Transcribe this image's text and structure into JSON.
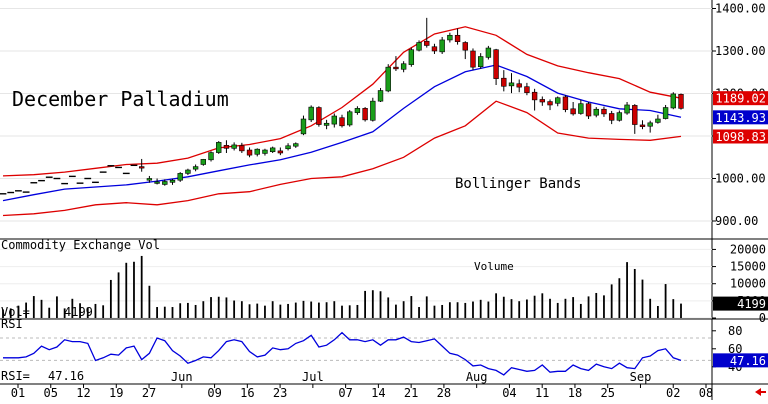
{
  "chart_data": {
    "type": "candlestick",
    "title": "December Palladium",
    "annotation": "Bollinger Bands",
    "colors": {
      "up": "#1a9e1a",
      "down": "#cc0000",
      "doji": "#000000",
      "upper_band": "#dd0000",
      "lower_band": "#dd0000",
      "mid_band": "#0000dd",
      "rsi_line": "#0000dd",
      "volume": "#000000",
      "tag_red": "#dd0000",
      "tag_blue": "#0000cc",
      "tag_black": "#000000"
    },
    "price_axis": {
      "range": [
        860,
        1420
      ],
      "ticks": [
        900,
        1000,
        1100,
        1200,
        1300,
        1400
      ],
      "tick_labels": [
        "900.00",
        "1000.00",
        "1100.00",
        "1200.00",
        "1300.00",
        "1400.00"
      ]
    },
    "price_tags": {
      "upper": "1189.02",
      "mid": "1143.93",
      "lower": "1098.83"
    },
    "candles": [
      [
        964,
        964,
        964,
        964
      ],
      [
        967,
        967,
        967,
        967
      ],
      [
        971,
        971,
        971,
        971
      ],
      [
        968,
        968,
        968,
        968
      ],
      [
        990,
        990,
        990,
        990
      ],
      [
        995,
        995,
        995,
        995
      ],
      [
        1003,
        1003,
        1003,
        1003
      ],
      [
        1000,
        1000,
        1000,
        1000
      ],
      [
        988,
        988,
        988,
        988
      ],
      [
        1005,
        1005,
        1005,
        1005
      ],
      [
        989,
        989,
        989,
        989
      ],
      [
        1000,
        1000,
        1000,
        1000
      ],
      [
        991,
        991,
        991,
        991
      ],
      [
        1015,
        1015,
        1015,
        1015
      ],
      [
        1030,
        1030,
        1030,
        1030
      ],
      [
        1026,
        1026,
        1026,
        1026
      ],
      [
        1012,
        1012,
        1012,
        1012
      ],
      [
        1031,
        1031,
        1031,
        1031
      ],
      [
        1028,
        1026,
        1046,
        1016
      ],
      [
        996,
        1000,
        1006,
        990
      ],
      [
        990,
        992,
        1000,
        986
      ],
      [
        986,
        993,
        998,
        983
      ],
      [
        991,
        996,
        999,
        985
      ],
      [
        996,
        1012,
        1015,
        992
      ],
      [
        1012,
        1020,
        1023,
        1008
      ],
      [
        1022,
        1028,
        1033,
        1017
      ],
      [
        1033,
        1045,
        1046,
        1030
      ],
      [
        1044,
        1061,
        1064,
        1040
      ],
      [
        1061,
        1085,
        1088,
        1058
      ],
      [
        1078,
        1071,
        1090,
        1060
      ],
      [
        1071,
        1079,
        1085,
        1066
      ],
      [
        1077,
        1065,
        1084,
        1060
      ],
      [
        1067,
        1055,
        1073,
        1050
      ],
      [
        1057,
        1069,
        1071,
        1052
      ],
      [
        1059,
        1067,
        1070,
        1054
      ],
      [
        1063,
        1072,
        1075,
        1060
      ],
      [
        1065,
        1060,
        1073,
        1055
      ],
      [
        1070,
        1077,
        1083,
        1066
      ],
      [
        1076,
        1082,
        1085,
        1072
      ],
      [
        1105,
        1140,
        1148,
        1102
      ],
      [
        1138,
        1168,
        1172,
        1133
      ],
      [
        1167,
        1127,
        1170,
        1122
      ],
      [
        1125,
        1130,
        1138,
        1116
      ],
      [
        1128,
        1147,
        1153,
        1120
      ],
      [
        1143,
        1124,
        1150,
        1120
      ],
      [
        1126,
        1157,
        1161,
        1122
      ],
      [
        1155,
        1165,
        1170,
        1150
      ],
      [
        1165,
        1138,
        1168,
        1134
      ],
      [
        1137,
        1182,
        1190,
        1134
      ],
      [
        1182,
        1207,
        1213,
        1180
      ],
      [
        1206,
        1262,
        1269,
        1203
      ],
      [
        1262,
        1258,
        1288,
        1253
      ],
      [
        1257,
        1270,
        1276,
        1250
      ],
      [
        1268,
        1303,
        1308,
        1263
      ],
      [
        1302,
        1320,
        1325,
        1299
      ],
      [
        1323,
        1313,
        1378,
        1308
      ],
      [
        1310,
        1300,
        1317,
        1293
      ],
      [
        1298,
        1326,
        1333,
        1293
      ],
      [
        1326,
        1337,
        1343,
        1320
      ],
      [
        1337,
        1322,
        1353,
        1315
      ],
      [
        1320,
        1302,
        1323,
        1281
      ],
      [
        1300,
        1262,
        1306,
        1255
      ],
      [
        1263,
        1287,
        1295,
        1258
      ],
      [
        1285,
        1307,
        1312,
        1280
      ],
      [
        1303,
        1235,
        1305,
        1220
      ],
      [
        1236,
        1217,
        1255,
        1205
      ],
      [
        1218,
        1225,
        1248,
        1201
      ],
      [
        1223,
        1215,
        1233,
        1203
      ],
      [
        1216,
        1202,
        1225,
        1196
      ],
      [
        1203,
        1185,
        1211,
        1160
      ],
      [
        1186,
        1180,
        1193,
        1171
      ],
      [
        1181,
        1173,
        1186,
        1161
      ],
      [
        1177,
        1190,
        1193,
        1170
      ],
      [
        1192,
        1162,
        1196,
        1156
      ],
      [
        1164,
        1152,
        1180,
        1148
      ],
      [
        1153,
        1176,
        1185,
        1150
      ],
      [
        1176,
        1147,
        1180,
        1140
      ],
      [
        1149,
        1163,
        1168,
        1144
      ],
      [
        1163,
        1152,
        1169,
        1145
      ],
      [
        1153,
        1137,
        1159,
        1128
      ],
      [
        1137,
        1155,
        1160,
        1134
      ],
      [
        1154,
        1173,
        1180,
        1150
      ],
      [
        1172,
        1127,
        1175,
        1105
      ],
      [
        1126,
        1122,
        1137,
        1116
      ],
      [
        1123,
        1131,
        1136,
        1108
      ],
      [
        1132,
        1140,
        1150,
        1129
      ],
      [
        1141,
        1167,
        1173,
        1139
      ],
      [
        1166,
        1199,
        1203,
        1163
      ],
      [
        1198,
        1165,
        1200,
        1162
      ]
    ],
    "bands": {
      "upper": [
        [
          0,
          1006
        ],
        [
          4,
          1009
        ],
        [
          8,
          1015
        ],
        [
          12,
          1024
        ],
        [
          16,
          1033
        ],
        [
          20,
          1036
        ],
        [
          24,
          1048
        ],
        [
          28,
          1072
        ],
        [
          32,
          1080
        ],
        [
          36,
          1094
        ],
        [
          40,
          1124
        ],
        [
          44,
          1167
        ],
        [
          48,
          1222
        ],
        [
          52,
          1297
        ],
        [
          56,
          1340
        ],
        [
          60,
          1357
        ],
        [
          64,
          1337
        ],
        [
          68,
          1292
        ],
        [
          72,
          1265
        ],
        [
          76,
          1249
        ],
        [
          80,
          1235
        ],
        [
          84,
          1203
        ],
        [
          88,
          1189
        ]
      ],
      "mid": [
        [
          0,
          948
        ],
        [
          4,
          962
        ],
        [
          8,
          975
        ],
        [
          12,
          980
        ],
        [
          16,
          985
        ],
        [
          20,
          994
        ],
        [
          24,
          1004
        ],
        [
          28,
          1018
        ],
        [
          32,
          1032
        ],
        [
          36,
          1044
        ],
        [
          40,
          1062
        ],
        [
          44,
          1085
        ],
        [
          48,
          1110
        ],
        [
          52,
          1165
        ],
        [
          56,
          1216
        ],
        [
          60,
          1251
        ],
        [
          64,
          1267
        ],
        [
          68,
          1240
        ],
        [
          72,
          1201
        ],
        [
          76,
          1180
        ],
        [
          80,
          1164
        ],
        [
          84,
          1160
        ],
        [
          88,
          1144
        ]
      ],
      "lower": [
        [
          0,
          913
        ],
        [
          4,
          917
        ],
        [
          8,
          925
        ],
        [
          12,
          938
        ],
        [
          16,
          943
        ],
        [
          20,
          938
        ],
        [
          24,
          948
        ],
        [
          28,
          964
        ],
        [
          32,
          969
        ],
        [
          36,
          986
        ],
        [
          40,
          1000
        ],
        [
          44,
          1004
        ],
        [
          48,
          1023
        ],
        [
          52,
          1050
        ],
        [
          56,
          1095
        ],
        [
          60,
          1124
        ],
        [
          64,
          1182
        ],
        [
          68,
          1155
        ],
        [
          72,
          1107
        ],
        [
          76,
          1095
        ],
        [
          80,
          1092
        ],
        [
          84,
          1090
        ],
        [
          88,
          1099
        ]
      ]
    },
    "volume_panel": {
      "label": "Commodity Exchange Vol",
      "inset_label": "Volume",
      "ticks": [
        0,
        5000,
        10000,
        15000,
        20000
      ],
      "tick_labels": [
        "0",
        "5000",
        "10000",
        "15000",
        "20000"
      ],
      "readout_label": "Vol=",
      "readout_value": "4199",
      "tag": "4199",
      "range": [
        0,
        21000
      ],
      "values": [
        2500,
        2800,
        3600,
        4500,
        6400,
        5300,
        3000,
        6300,
        2800,
        5600,
        4300,
        3100,
        4100,
        3700,
        11100,
        13300,
        16100,
        16400,
        18100,
        9400,
        3200,
        3300,
        3200,
        4300,
        4400,
        3800,
        4900,
        6100,
        6200,
        6000,
        5100,
        4900,
        4000,
        4200,
        3600,
        4900,
        3900,
        4100,
        4500,
        5000,
        4800,
        4500,
        4600,
        4900,
        3600,
        3700,
        3800,
        7900,
        8100,
        7800,
        6000,
        3900,
        4900,
        6400,
        3200,
        6300,
        3600,
        3800,
        4600,
        4600,
        4400,
        4800,
        5300,
        4800,
        7200,
        6200,
        5500,
        4900,
        5400,
        6500,
        7200,
        5600,
        4400,
        5600,
        6100,
        4100,
        6300,
        7300,
        6600,
        9800,
        11600,
        16300,
        14300,
        11200,
        5600,
        3500,
        9900,
        5500,
        4199
      ]
    },
    "rsi_panel": {
      "label": "RSI",
      "ticks": [
        40,
        60,
        80
      ],
      "tick_labels": [
        "40",
        "60",
        "80"
      ],
      "range": [
        22,
        92
      ],
      "ref_lines": [
        72,
        47.16
      ],
      "readout_label": "RSI=",
      "readout_value": "47.16",
      "tag": "47.16",
      "values": [
        50,
        50,
        50,
        51,
        55,
        63,
        59,
        62,
        70,
        68,
        68,
        66,
        47,
        50,
        54,
        53,
        61,
        63,
        48,
        55,
        72,
        69,
        58,
        52,
        44,
        47,
        51,
        50,
        58,
        68,
        70,
        68,
        57,
        51,
        53,
        61,
        59,
        60,
        66,
        69,
        75,
        62,
        64,
        70,
        78,
        70,
        70,
        68,
        70,
        64,
        70,
        70,
        73,
        68,
        67,
        69,
        71,
        63,
        55,
        53,
        48,
        41,
        42,
        38,
        36,
        31,
        39,
        37,
        35,
        36,
        42,
        34,
        35,
        35,
        42,
        38,
        36,
        43,
        40,
        38,
        44,
        39,
        38,
        50,
        52,
        58,
        60,
        50,
        47.16
      ]
    },
    "x_axis": {
      "labels": [
        "01",
        "05",
        "12",
        "19",
        "27",
        "Jun",
        "09",
        "16",
        "23",
        "Jul",
        "07",
        "14",
        "21",
        "28",
        "Aug",
        "04",
        "11",
        "18",
        "25",
        "Sep",
        "02",
        "08"
      ]
    }
  }
}
